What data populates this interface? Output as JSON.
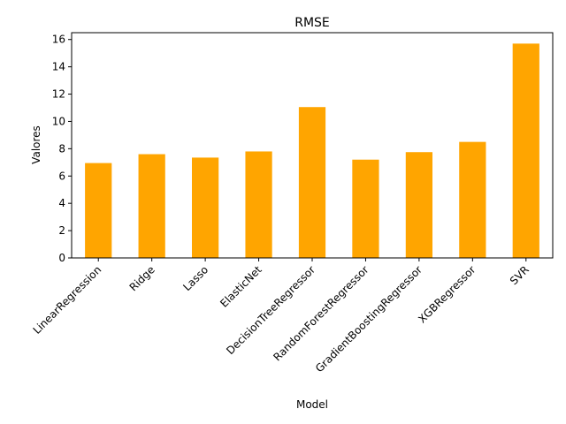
{
  "chart_data": {
    "type": "bar",
    "title": "RMSE",
    "xlabel": "Model",
    "ylabel": "Valores",
    "categories": [
      "LinearRegression",
      "Ridge",
      "Lasso",
      "ElasticNet",
      "DecisionTreeRegressor",
      "RandomForestRegressor",
      "GradientBoostingRegressor",
      "XGBRegressor",
      "SVR"
    ],
    "values": [
      6.95,
      7.6,
      7.35,
      7.8,
      11.05,
      7.2,
      7.75,
      8.5,
      15.7
    ],
    "ylim": [
      0,
      16.5
    ],
    "yticks": [
      0,
      2,
      4,
      6,
      8,
      10,
      12,
      14,
      16
    ],
    "bar_color": "#ffa500",
    "grid": false,
    "legend": "none"
  }
}
